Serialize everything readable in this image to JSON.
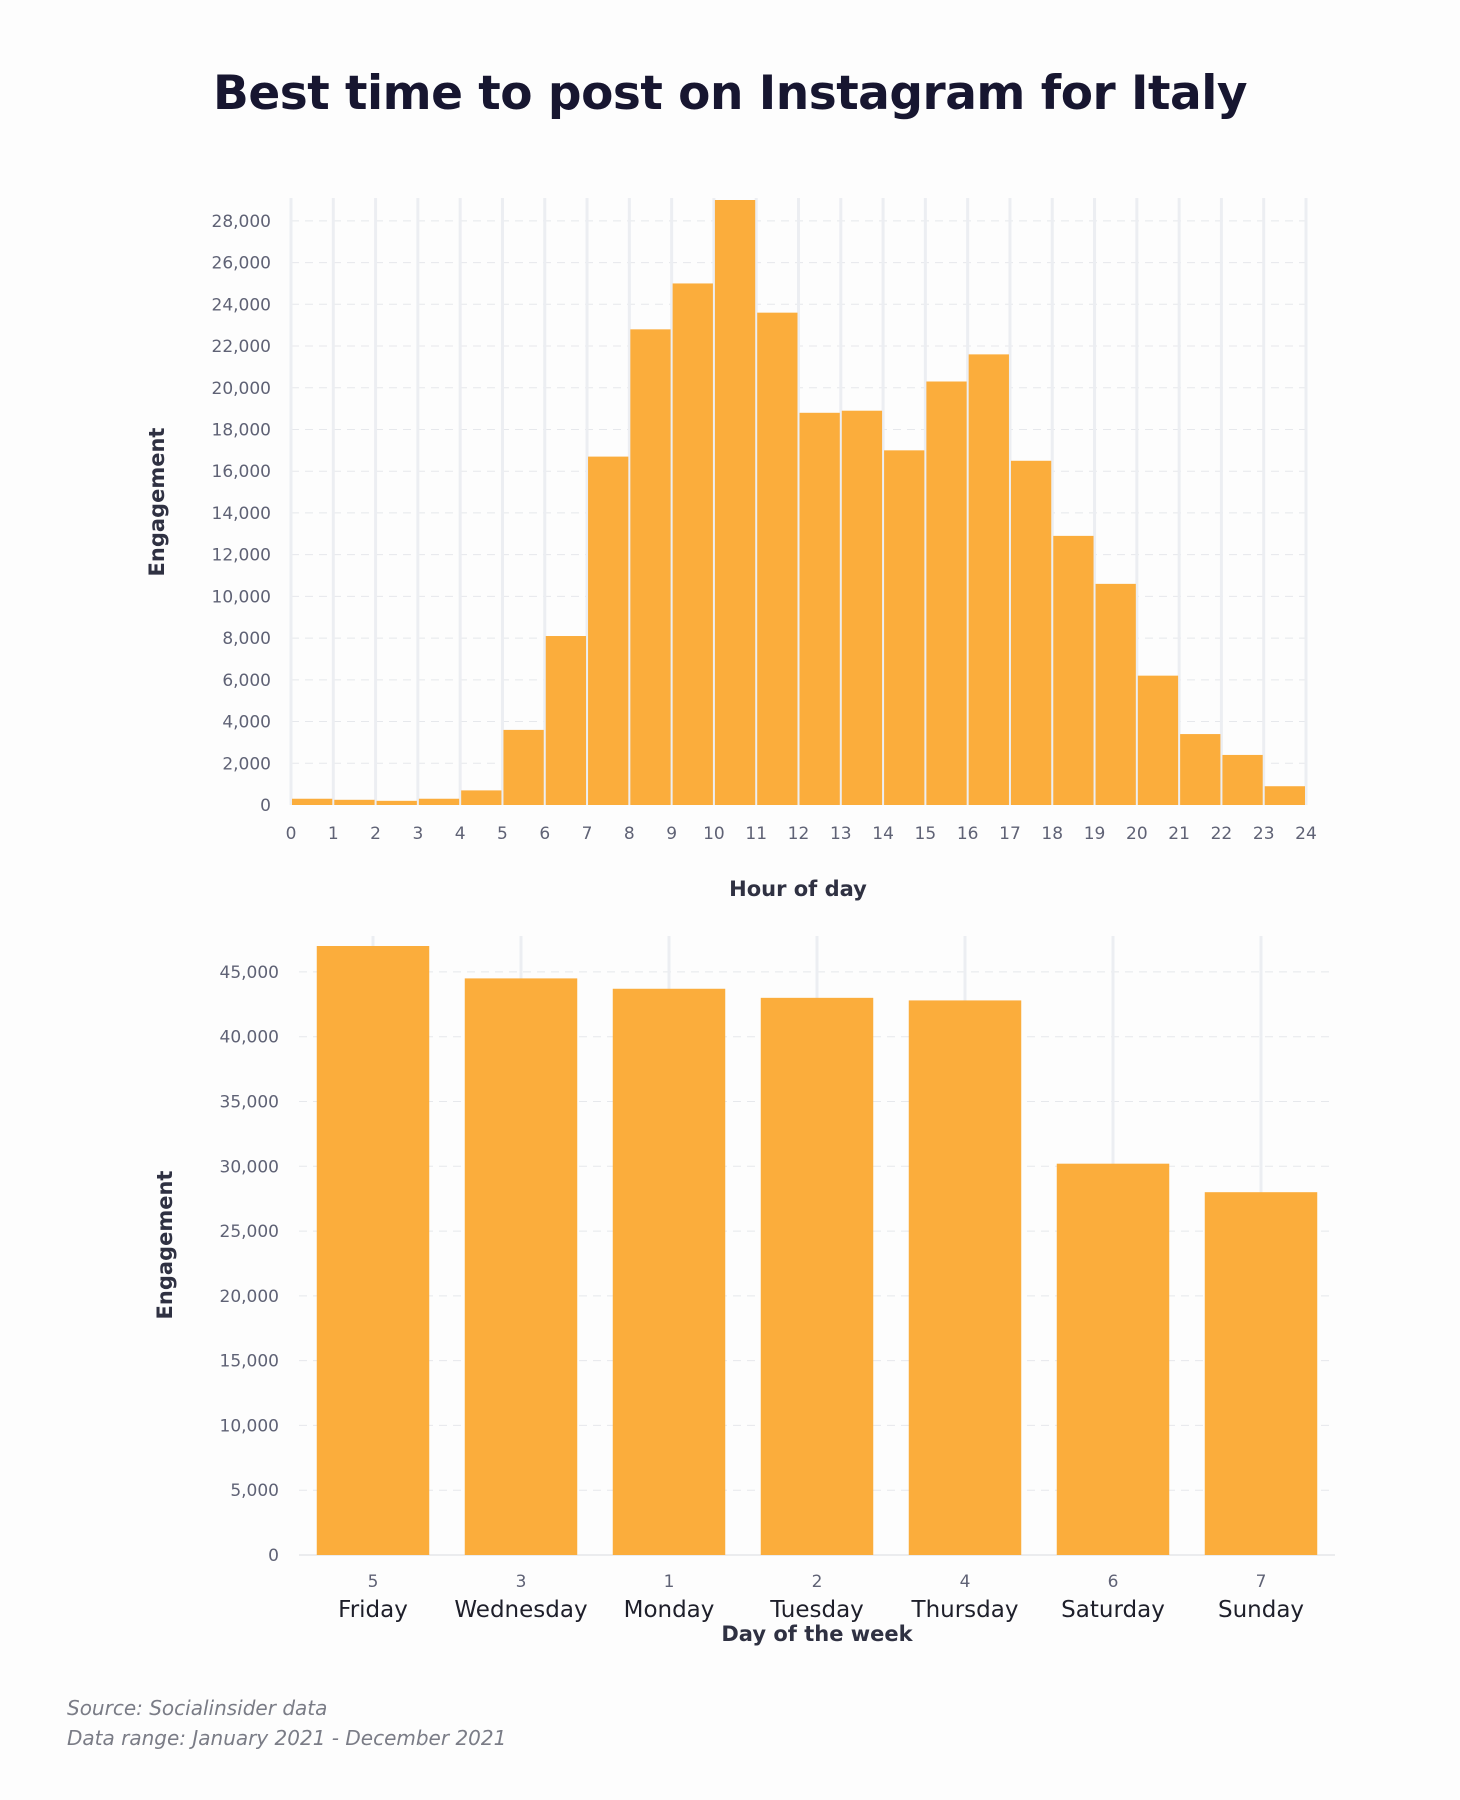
{
  "title": "Best time to post on Instagram for Italy",
  "source": {
    "line1": "Source: Socialinsider data",
    "line2": "Data range: January 2021 - December 2021"
  },
  "colors": {
    "bar": "#fbad3c",
    "title": "#171630"
  },
  "chart_data": [
    {
      "type": "bar",
      "title": "",
      "xlabel": "Hour of day",
      "ylabel": "Engagement",
      "x_ticks": [
        0,
        1,
        2,
        3,
        4,
        5,
        6,
        7,
        8,
        9,
        10,
        11,
        12,
        13,
        14,
        15,
        16,
        17,
        18,
        19,
        20,
        21,
        22,
        23,
        24
      ],
      "y_ticks": [
        0,
        2000,
        4000,
        6000,
        8000,
        10000,
        12000,
        14000,
        16000,
        18000,
        20000,
        22000,
        24000,
        26000,
        28000
      ],
      "y_tick_labels": [
        "0",
        "2,000",
        "4,000",
        "6,000",
        "8,000",
        "10,000",
        "12,000",
        "14,000",
        "16,000",
        "18,000",
        "20,000",
        "22,000",
        "24,000",
        "26,000",
        "28,000"
      ],
      "ylim": [
        0,
        29000
      ],
      "xlim": [
        0,
        24
      ],
      "bins": [
        [
          0,
          1
        ],
        [
          1,
          2
        ],
        [
          2,
          3
        ],
        [
          3,
          4
        ],
        [
          4,
          5
        ],
        [
          5,
          6
        ],
        [
          6,
          7
        ],
        [
          7,
          8
        ],
        [
          8,
          9
        ],
        [
          9,
          10
        ],
        [
          10,
          11
        ],
        [
          11,
          12
        ],
        [
          12,
          13
        ],
        [
          13,
          14
        ],
        [
          14,
          15
        ],
        [
          15,
          16
        ],
        [
          16,
          17
        ],
        [
          17,
          18
        ],
        [
          18,
          19
        ],
        [
          19,
          20
        ],
        [
          20,
          21
        ],
        [
          21,
          22
        ],
        [
          22,
          23
        ],
        [
          23,
          24
        ]
      ],
      "values": [
        300,
        250,
        200,
        300,
        700,
        3600,
        8100,
        16700,
        22800,
        25000,
        29000,
        23600,
        18800,
        18900,
        17000,
        20300,
        21600,
        16500,
        12900,
        10600,
        6200,
        3400,
        2400,
        900
      ],
      "legend": "none",
      "grid": "on"
    },
    {
      "type": "bar",
      "title": "",
      "xlabel": "Day of the week",
      "ylabel": "Engagement",
      "categories": [
        "Friday",
        "Wednesday",
        "Monday",
        "Tuesday",
        "Thursday",
        "Saturday",
        "Sunday"
      ],
      "category_codes": [
        "5",
        "3",
        "1",
        "2",
        "4",
        "6",
        "7"
      ],
      "values": [
        47000,
        44500,
        43700,
        43000,
        42800,
        30200,
        28000
      ],
      "y_ticks": [
        0,
        5000,
        10000,
        15000,
        20000,
        25000,
        30000,
        35000,
        40000,
        45000
      ],
      "y_tick_labels": [
        "0",
        "5,000",
        "10,000",
        "15,000",
        "20,000",
        "25,000",
        "30,000",
        "35,000",
        "40,000",
        "45,000"
      ],
      "ylim": [
        0,
        47000
      ],
      "legend": "none",
      "grid": "on"
    }
  ]
}
